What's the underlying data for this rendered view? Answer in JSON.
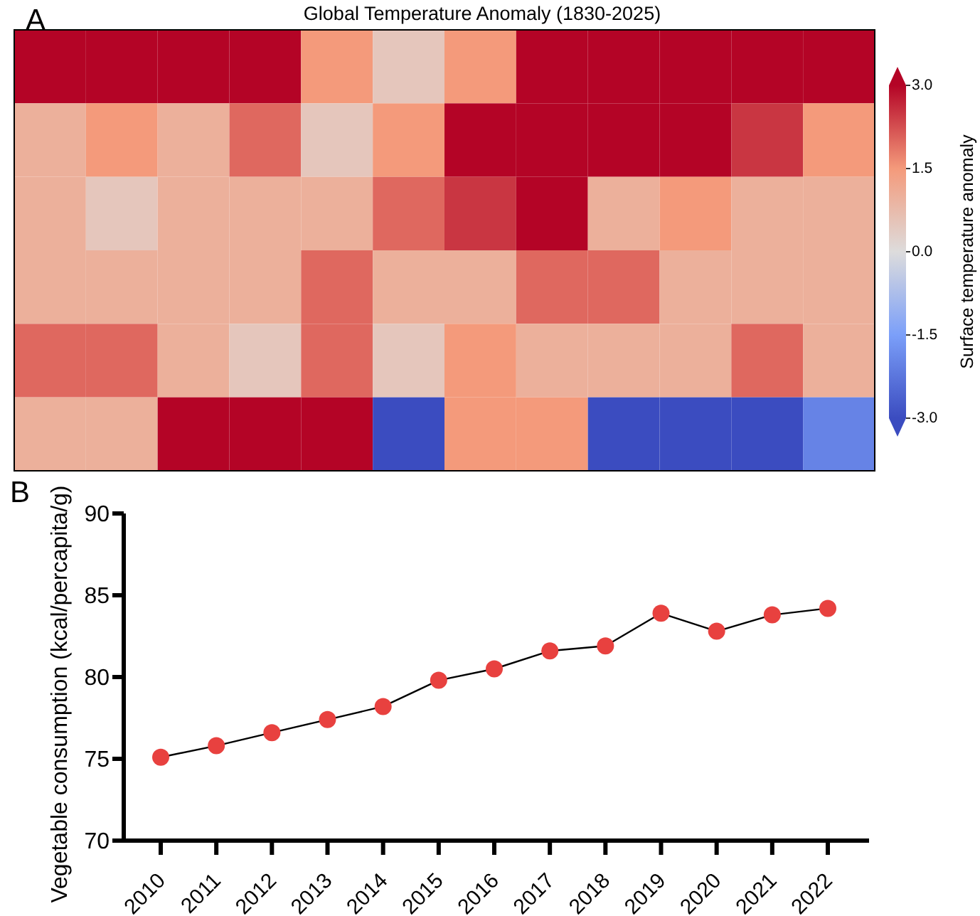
{
  "chart_data": [
    {
      "type": "heatmap",
      "title": "Global Temperature Anomaly (1830-2025)",
      "clabel": "Surface temperature anomaly",
      "categories": [
        null,
        null,
        null,
        null,
        null,
        null,
        null,
        null,
        null,
        null,
        null,
        null
      ],
      "y_categories": [
        null,
        null,
        null,
        null,
        null,
        null
      ],
      "cells": [
        [
          3,
          3,
          3,
          3,
          1.5,
          0.5,
          1.5,
          3,
          3,
          3,
          3,
          3
        ],
        [
          1,
          1.5,
          1,
          2,
          0.5,
          1.5,
          3,
          3,
          3,
          3,
          2.5,
          1.5
        ],
        [
          1,
          0.5,
          1,
          1,
          1,
          2,
          2.5,
          3,
          1,
          1.5,
          1,
          1
        ],
        [
          1,
          1,
          1,
          1,
          2,
          1,
          1,
          2,
          2,
          1,
          1,
          1
        ],
        [
          2,
          2,
          1,
          0.5,
          2,
          0.5,
          1.5,
          1,
          1,
          1,
          2,
          1
        ],
        [
          1,
          1,
          3,
          3,
          3,
          -3,
          1.5,
          1.5,
          -3,
          -3,
          -3,
          -2
        ]
      ],
      "clim": [
        -3,
        3
      ],
      "cticks": [
        {
          "value": 3,
          "label": "3.0"
        },
        {
          "value": 1.5,
          "label": "1.5"
        },
        {
          "value": 0,
          "label": "0.0"
        },
        {
          "value": -1.5,
          "label": "-1.5"
        },
        {
          "value": -3,
          "label": "-3.0"
        }
      ],
      "annotations": [
        "A"
      ]
    },
    {
      "type": "line",
      "ylabel": "Vegetable consumption (kcal/percapita/g)",
      "categories": [
        "2010",
        "2011",
        "2012",
        "2013",
        "2014",
        "2015",
        "2016",
        "2017",
        "2018",
        "2019",
        "2020",
        "2021",
        "2022"
      ],
      "values": [
        75.1,
        75.8,
        76.6,
        77.4,
        78.2,
        79.8,
        80.5,
        81.6,
        81.9,
        83.9,
        82.8,
        83.8,
        84.2
      ],
      "color": "#e8413f",
      "ylim": [
        70,
        90
      ],
      "yticks": [
        70,
        75,
        80,
        85,
        90
      ],
      "marker": "circle",
      "annotations": [
        "B"
      ]
    }
  ]
}
